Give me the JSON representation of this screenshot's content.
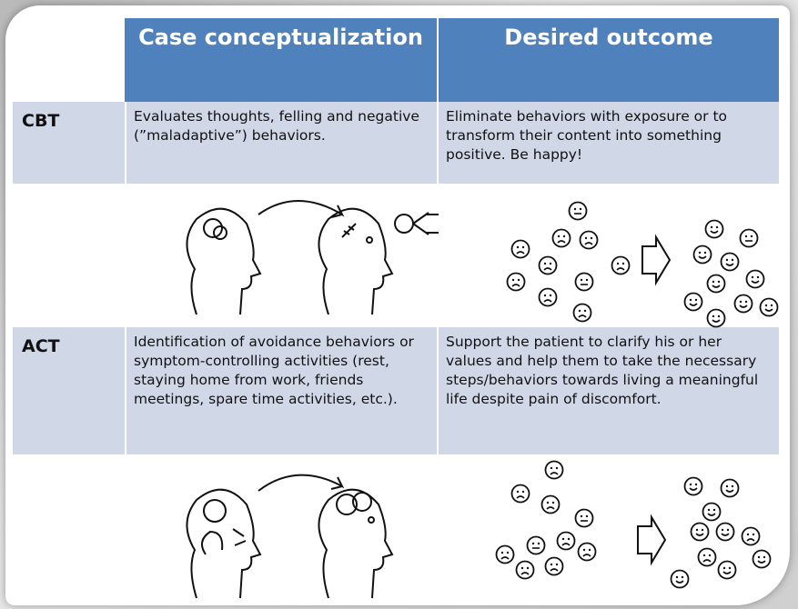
{
  "table": {
    "columns": [
      "Case conceptualization",
      "Desired outcome"
    ],
    "rows": [
      {
        "label": "CBT",
        "cells": [
          "Evaluates thoughts, felling and negative (”maladaptive”) behaviors.",
          "Eliminate behaviors with exposure or to transform their content into something positive. Be happy!"
        ]
      },
      {
        "label": "ACT",
        "cells": [
          "Identification of avoidance behaviors or symptom-controlling activities (rest, staying home from work, friends meetings, spare time activities, etc.).",
          "Support the patient to clarify his or her values and help them to take the necessary steps/behaviors towards living a meaningful life despite pain of discomfort."
        ]
      }
    ]
  }
}
